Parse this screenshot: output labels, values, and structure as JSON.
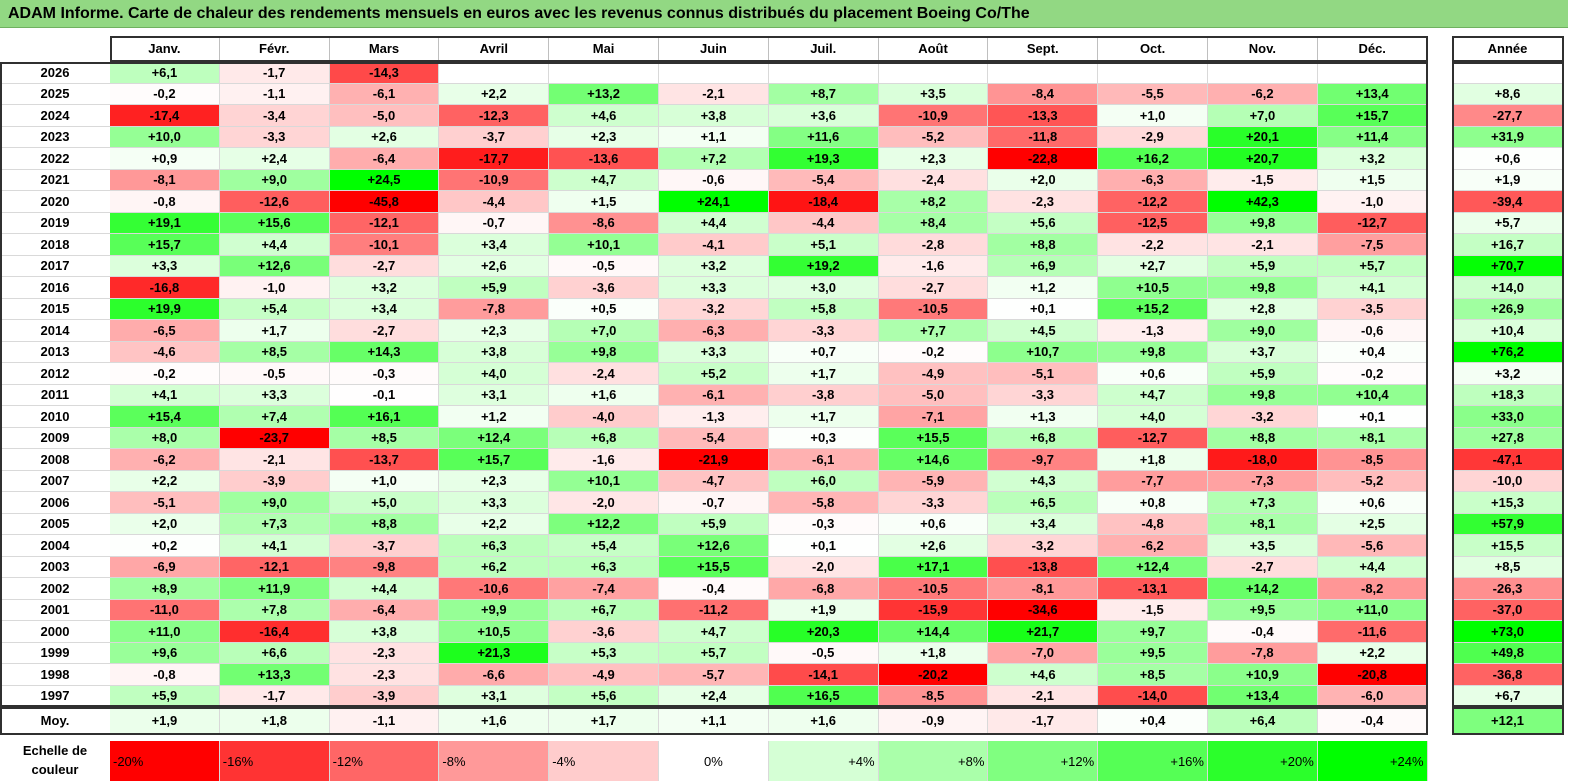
{
  "title": "ADAM Informe. Carte de chaleur des rendements mensuels en euros avec les revenus connus distribués du placement Boeing Co/The",
  "chart_data": {
    "type": "heatmap",
    "title": "ADAM Informe. Carte de chaleur des rendements mensuels en euros avec les revenus connus distribués du placement Boeing Co/The",
    "columns": [
      "Janv.",
      "Févr.",
      "Mars",
      "Avril",
      "Mai",
      "Juin",
      "Juil.",
      "Août",
      "Sept.",
      "Oct.",
      "Nov.",
      "Déc."
    ],
    "year_header": "Année",
    "rows": [
      {
        "year": "2026",
        "months": [
          "+6,1",
          "-1,7",
          "-14,3",
          "",
          "",
          "",
          "",
          "",
          "",
          "",
          "",
          ""
        ],
        "total": ""
      },
      {
        "year": "2025",
        "months": [
          "-0,2",
          "-1,1",
          "-6,1",
          "+2,2",
          "+13,2",
          "-2,1",
          "+8,7",
          "+3,5",
          "-8,4",
          "-5,5",
          "-6,2",
          "+13,4"
        ],
        "total": "+8,6"
      },
      {
        "year": "2024",
        "months": [
          "-17,4",
          "-3,4",
          "-5,0",
          "-12,3",
          "+4,6",
          "+3,8",
          "+3,6",
          "-10,9",
          "-13,3",
          "+1,0",
          "+7,0",
          "+15,7"
        ],
        "total": "-27,7"
      },
      {
        "year": "2023",
        "months": [
          "+10,0",
          "-3,3",
          "+2,6",
          "-3,7",
          "+2,3",
          "+1,1",
          "+11,6",
          "-5,2",
          "-11,8",
          "-2,9",
          "+20,1",
          "+11,4"
        ],
        "total": "+31,9"
      },
      {
        "year": "2022",
        "months": [
          "+0,9",
          "+2,4",
          "-6,4",
          "-17,7",
          "-13,6",
          "+7,2",
          "+19,3",
          "+2,3",
          "-22,8",
          "+16,2",
          "+20,7",
          "+3,2"
        ],
        "total": "+0,6"
      },
      {
        "year": "2021",
        "months": [
          "-8,1",
          "+9,0",
          "+24,5",
          "-10,9",
          "+4,7",
          "-0,6",
          "-5,4",
          "-2,4",
          "+2,0",
          "-6,3",
          "-1,5",
          "+1,5"
        ],
        "total": "+1,9"
      },
      {
        "year": "2020",
        "months": [
          "-0,8",
          "-12,6",
          "-45,8",
          "-4,4",
          "+1,5",
          "+24,1",
          "-18,4",
          "+8,2",
          "-2,3",
          "-12,2",
          "+42,3",
          "-1,0"
        ],
        "total": "-39,4"
      },
      {
        "year": "2019",
        "months": [
          "+19,1",
          "+15,6",
          "-12,1",
          "-0,7",
          "-8,6",
          "+4,4",
          "-4,4",
          "+8,4",
          "+5,6",
          "-12,5",
          "+9,8",
          "-12,7"
        ],
        "total": "+5,7"
      },
      {
        "year": "2018",
        "months": [
          "+15,7",
          "+4,4",
          "-10,1",
          "+3,4",
          "+10,1",
          "-4,1",
          "+5,1",
          "-2,8",
          "+8,8",
          "-2,2",
          "-2,1",
          "-7,5"
        ],
        "total": "+16,7"
      },
      {
        "year": "2017",
        "months": [
          "+3,3",
          "+12,6",
          "-2,7",
          "+2,6",
          "-0,5",
          "+3,2",
          "+19,2",
          "-1,6",
          "+6,9",
          "+2,7",
          "+5,9",
          "+5,7"
        ],
        "total": "+70,7"
      },
      {
        "year": "2016",
        "months": [
          "-16,8",
          "-1,0",
          "+3,2",
          "+5,9",
          "-3,6",
          "+3,3",
          "+3,0",
          "-2,7",
          "+1,2",
          "+10,5",
          "+9,8",
          "+4,1"
        ],
        "total": "+14,0"
      },
      {
        "year": "2015",
        "months": [
          "+19,9",
          "+5,4",
          "+3,4",
          "-7,8",
          "+0,5",
          "-3,2",
          "+5,8",
          "-10,5",
          "+0,1",
          "+15,2",
          "+2,8",
          "-3,5"
        ],
        "total": "+26,9"
      },
      {
        "year": "2014",
        "months": [
          "-6,5",
          "+1,7",
          "-2,7",
          "+2,3",
          "+7,0",
          "-6,3",
          "-3,3",
          "+7,7",
          "+4,5",
          "-1,3",
          "+9,0",
          "-0,6"
        ],
        "total": "+10,4"
      },
      {
        "year": "2013",
        "months": [
          "-4,6",
          "+8,5",
          "+14,3",
          "+3,8",
          "+9,8",
          "+3,3",
          "+0,7",
          "-0,2",
          "+10,7",
          "+9,8",
          "+3,7",
          "+0,4"
        ],
        "total": "+76,2"
      },
      {
        "year": "2012",
        "months": [
          "-0,2",
          "-0,5",
          "-0,3",
          "+4,0",
          "-2,4",
          "+5,2",
          "+1,7",
          "-4,9",
          "-5,1",
          "+0,6",
          "+5,9",
          "-0,2"
        ],
        "total": "+3,2"
      },
      {
        "year": "2011",
        "months": [
          "+4,1",
          "+3,3",
          "-0,1",
          "+3,1",
          "+1,6",
          "-6,1",
          "-3,8",
          "-5,0",
          "-3,3",
          "+4,7",
          "+9,8",
          "+10,4"
        ],
        "total": "+18,3"
      },
      {
        "year": "2010",
        "months": [
          "+15,4",
          "+7,4",
          "+16,1",
          "+1,2",
          "-4,0",
          "-1,3",
          "+1,7",
          "-7,1",
          "+1,3",
          "+4,0",
          "-3,2",
          "+0,1"
        ],
        "total": "+33,0"
      },
      {
        "year": "2009",
        "months": [
          "+8,0",
          "-23,7",
          "+8,5",
          "+12,4",
          "+6,8",
          "-5,4",
          "+0,3",
          "+15,5",
          "+6,8",
          "-12,7",
          "+8,8",
          "+8,1"
        ],
        "total": "+27,8"
      },
      {
        "year": "2008",
        "months": [
          "-6,2",
          "-2,1",
          "-13,7",
          "+15,7",
          "-1,6",
          "-21,9",
          "-6,1",
          "+14,6",
          "-9,7",
          "+1,8",
          "-18,0",
          "-8,5"
        ],
        "total": "-47,1"
      },
      {
        "year": "2007",
        "months": [
          "+2,2",
          "-3,9",
          "+1,0",
          "+2,3",
          "+10,1",
          "-4,7",
          "+6,0",
          "-5,9",
          "+4,3",
          "-7,7",
          "-7,3",
          "-5,2"
        ],
        "total": "-10,0"
      },
      {
        "year": "2006",
        "months": [
          "-5,1",
          "+9,0",
          "+5,0",
          "+3,3",
          "-2,0",
          "-0,7",
          "-5,8",
          "-3,3",
          "+6,5",
          "+0,8",
          "+7,3",
          "+0,6"
        ],
        "total": "+15,3"
      },
      {
        "year": "2005",
        "months": [
          "+2,0",
          "+7,3",
          "+8,8",
          "+2,2",
          "+12,2",
          "+5,9",
          "-0,3",
          "+0,6",
          "+3,4",
          "-4,8",
          "+8,1",
          "+2,5"
        ],
        "total": "+57,9"
      },
      {
        "year": "2004",
        "months": [
          "+0,2",
          "+4,1",
          "-3,7",
          "+6,3",
          "+5,4",
          "+12,6",
          "+0,1",
          "+2,6",
          "-3,2",
          "-6,2",
          "+3,5",
          "-5,6"
        ],
        "total": "+15,5"
      },
      {
        "year": "2003",
        "months": [
          "-6,9",
          "-12,1",
          "-9,8",
          "+6,2",
          "+6,3",
          "+15,5",
          "-2,0",
          "+17,1",
          "-13,8",
          "+12,4",
          "-2,7",
          "+4,4"
        ],
        "total": "+8,5"
      },
      {
        "year": "2002",
        "months": [
          "+8,9",
          "+11,9",
          "+4,4",
          "-10,6",
          "-7,4",
          "-0,4",
          "-6,8",
          "-10,5",
          "-8,1",
          "-13,1",
          "+14,2",
          "-8,2"
        ],
        "total": "-26,3"
      },
      {
        "year": "2001",
        "months": [
          "-11,0",
          "+7,8",
          "-6,4",
          "+9,9",
          "+6,7",
          "-11,2",
          "+1,9",
          "-15,9",
          "-34,6",
          "-1,5",
          "+9,5",
          "+11,0"
        ],
        "total": "-37,0"
      },
      {
        "year": "2000",
        "months": [
          "+11,0",
          "-16,4",
          "+3,8",
          "+10,5",
          "-3,6",
          "+4,7",
          "+20,3",
          "+14,4",
          "+21,7",
          "+9,7",
          "-0,4",
          "-11,6"
        ],
        "total": "+73,0"
      },
      {
        "year": "1999",
        "months": [
          "+9,6",
          "+6,6",
          "-2,3",
          "+21,3",
          "+5,3",
          "+5,7",
          "-0,5",
          "+1,8",
          "-7,0",
          "+9,5",
          "-7,8",
          "+2,2"
        ],
        "total": "+49,8"
      },
      {
        "year": "1998",
        "months": [
          "-0,8",
          "+13,3",
          "-2,3",
          "-6,6",
          "-4,9",
          "-5,7",
          "-14,1",
          "-20,2",
          "+4,6",
          "+8,5",
          "+10,9",
          "-20,8"
        ],
        "total": "-36,8"
      },
      {
        "year": "1997",
        "months": [
          "+5,9",
          "-1,7",
          "-3,9",
          "+3,1",
          "+5,6",
          "+2,4",
          "+16,5",
          "-8,5",
          "-2,1",
          "-14,0",
          "+13,4",
          "-6,0"
        ],
        "total": "+6,7"
      }
    ],
    "average": {
      "label": "Moy.",
      "months": [
        "+1,9",
        "+1,8",
        "-1,1",
        "+1,6",
        "+1,7",
        "+1,1",
        "+1,6",
        "-0,9",
        "-1,7",
        "+0,4",
        "+6,4",
        "-0,4"
      ],
      "total": "+12,1"
    },
    "scale": {
      "label": "Echelle de couleur",
      "steps": [
        "-20%",
        "-16%",
        "-12%",
        "-8%",
        "-4%",
        "0%",
        "+4%",
        "+8%",
        "+12%",
        "+16%",
        "+20%",
        "+24%"
      ]
    },
    "colors": {
      "negative_max": "#ff0000",
      "neutral": "#ffffff",
      "positive_max": "#00ff00"
    }
  }
}
